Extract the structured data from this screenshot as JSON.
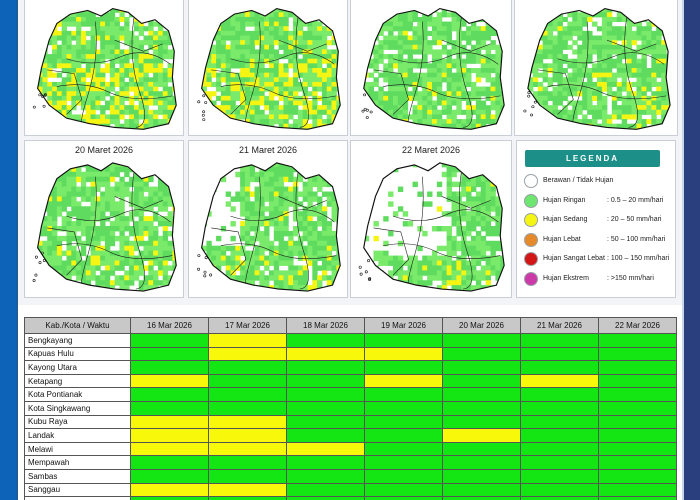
{
  "colors": {
    "no_rain": "#ffffff",
    "light": "#6fe66f",
    "moderate": "#f5f514",
    "heavy": "#e58a2a",
    "very_heavy": "#d21515",
    "extreme": "#cc3aa8",
    "legend_header": "#1c8f88"
  },
  "maps": [
    {
      "title": "",
      "coverage": "wet"
    },
    {
      "title": "",
      "coverage": "wet"
    },
    {
      "title": "",
      "coverage": "medium"
    },
    {
      "title": "",
      "coverage": "medium"
    },
    {
      "title": "20 Maret 2026",
      "coverage": "medium"
    },
    {
      "title": "21 Maret 2026",
      "coverage": "dry-west"
    },
    {
      "title": "22 Maret 2026",
      "coverage": "dry"
    }
  ],
  "legend": {
    "title": "LEGENDA",
    "items": [
      {
        "label": "Berawan / Tidak Hujan",
        "range": "",
        "color": "#ffffff"
      },
      {
        "label": "Hujan Ringan",
        "range": ": 0.5 – 20 mm/hari",
        "color": "#6fe66f"
      },
      {
        "label": "Hujan Sedang",
        "range": ": 20 – 50 mm/hari",
        "color": "#f5f514"
      },
      {
        "label": "Hujan Lebat",
        "range": ": 50 – 100 mm/hari",
        "color": "#e58a2a"
      },
      {
        "label": "Hujan Sangat Lebat",
        "range": ": 100 – 150 mm/hari",
        "color": "#d21515"
      },
      {
        "label": "Hujan Ekstrem",
        "range": ": >150 mm/hari",
        "color": "#cc3aa8"
      }
    ]
  },
  "table": {
    "corner": "Kab./Kota / Waktu",
    "dates": [
      "16 Mar 2026",
      "17 Mar 2026",
      "18 Mar 2026",
      "19 Mar 2026",
      "20 Mar 2026",
      "21 Mar 2026",
      "22 Mar 2026"
    ],
    "rows": [
      {
        "name": "Bengkayang",
        "cells": [
          "G",
          "Y",
          "G",
          "G",
          "G",
          "G",
          "G"
        ]
      },
      {
        "name": "Kapuas Hulu",
        "cells": [
          "G",
          "Y",
          "Y",
          "Y",
          "G",
          "G",
          "G"
        ]
      },
      {
        "name": "Kayong Utara",
        "cells": [
          "G",
          "G",
          "G",
          "G",
          "G",
          "G",
          "G"
        ]
      },
      {
        "name": "Ketapang",
        "cells": [
          "Y",
          "G",
          "G",
          "Y",
          "G",
          "Y",
          "G"
        ]
      },
      {
        "name": "Kota Pontianak",
        "cells": [
          "G",
          "G",
          "G",
          "G",
          "G",
          "G",
          "G"
        ]
      },
      {
        "name": "Kota Singkawang",
        "cells": [
          "G",
          "G",
          "G",
          "G",
          "G",
          "G",
          "G"
        ]
      },
      {
        "name": "Kubu Raya",
        "cells": [
          "Y",
          "Y",
          "G",
          "G",
          "G",
          "G",
          "G"
        ]
      },
      {
        "name": "Landak",
        "cells": [
          "Y",
          "Y",
          "G",
          "G",
          "Y",
          "G",
          "G"
        ]
      },
      {
        "name": "Melawi",
        "cells": [
          "Y",
          "Y",
          "Y",
          "G",
          "G",
          "G",
          "G"
        ]
      },
      {
        "name": "Mempawah",
        "cells": [
          "G",
          "G",
          "G",
          "G",
          "G",
          "G",
          "G"
        ]
      },
      {
        "name": "Sambas",
        "cells": [
          "G",
          "G",
          "G",
          "G",
          "G",
          "G",
          "G"
        ]
      },
      {
        "name": "Sanggau",
        "cells": [
          "Y",
          "Y",
          "G",
          "G",
          "G",
          "G",
          "G"
        ]
      },
      {
        "name": "",
        "cells": [
          "G",
          "G",
          "G",
          "G",
          "G",
          "G",
          "G"
        ]
      }
    ]
  }
}
